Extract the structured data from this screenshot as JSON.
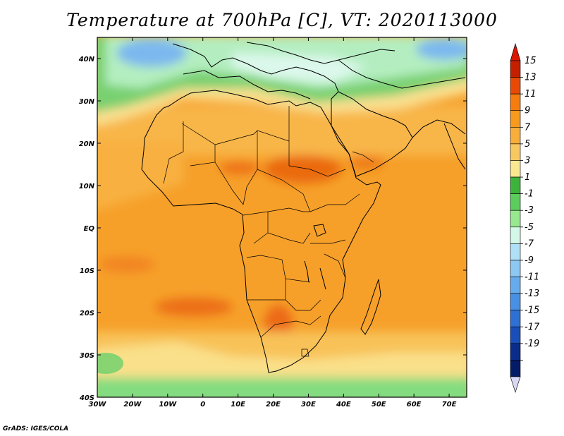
{
  "title": "Temperature at 700hPa [C], VT: 2020113000",
  "credit": "GrADS: IGES/COLA",
  "map": {
    "lon_ticks": [
      "30W",
      "20W",
      "10W",
      "0",
      "10E",
      "20E",
      "30E",
      "40E",
      "50E",
      "60E",
      "70E"
    ],
    "lat_ticks": [
      "40N",
      "30N",
      "20N",
      "10N",
      "EQ",
      "10S",
      "20S",
      "30S",
      "40S"
    ],
    "lon_range": [
      -30,
      75
    ],
    "lat_range": [
      -40,
      45
    ]
  },
  "colorbar": {
    "labels": [
      "15",
      "13",
      "11",
      "9",
      "7",
      "5",
      "3",
      "1",
      "-1",
      "-3",
      "-5",
      "-7",
      "-9",
      "-11",
      "-13",
      "-15",
      "-17",
      "-19"
    ],
    "colors": [
      "#c42000",
      "#e84a06",
      "#f67c10",
      "#f89a1e",
      "#f8ae3a",
      "#f8c860",
      "#fae890",
      "#3cb43c",
      "#5ccc5c",
      "#98e890",
      "#d4f8e8",
      "#b0e0f6",
      "#8cc8f2",
      "#66acec",
      "#4890e4",
      "#2e70d4",
      "#1a4eb8",
      "#0a2c8a",
      "#041c68"
    ],
    "arrow_top": "#d81800",
    "arrow_bottom": "#d8d8f6"
  }
}
